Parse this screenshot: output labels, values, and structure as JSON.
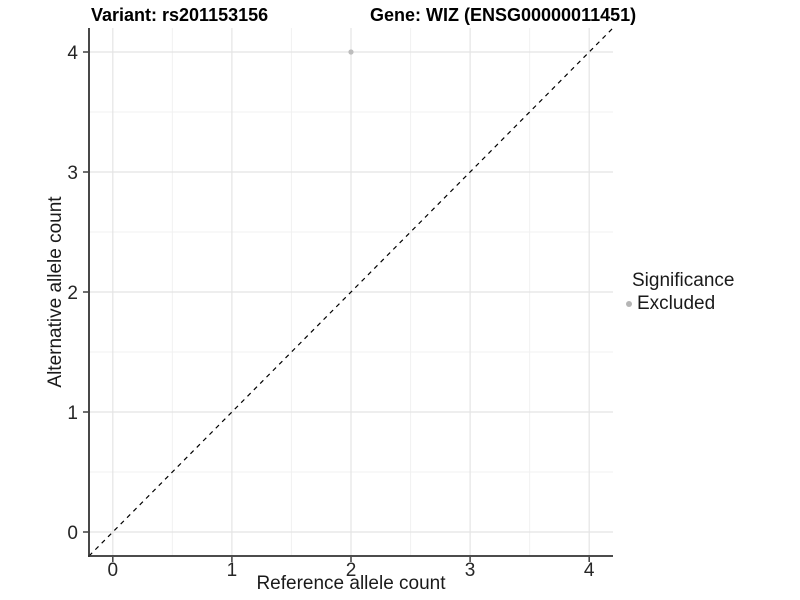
{
  "chart_data": {
    "type": "scatter",
    "title_left": "Variant: rs201153156",
    "title_right": "Gene: WIZ (ENSG00000011451)",
    "xlabel": "Reference allele count",
    "ylabel": "Alternative allele count",
    "xlim": [
      -0.2,
      4.2
    ],
    "ylim": [
      -0.2,
      4.2
    ],
    "xticks": [
      0,
      1,
      2,
      3,
      4
    ],
    "yticks": [
      0,
      1,
      2,
      3,
      4
    ],
    "minor_xticks": [
      0.5,
      1.5,
      2.5,
      3.5
    ],
    "minor_yticks": [
      0.5,
      1.5,
      2.5,
      3.5
    ],
    "grid": "major+minor",
    "series": [
      {
        "name": "Excluded",
        "color": "#bdbdbd",
        "points": [
          {
            "x": 2,
            "y": 4
          }
        ]
      }
    ],
    "reference_line": {
      "kind": "y=x",
      "linetype": "dashed",
      "color": "#000000"
    },
    "legend": {
      "title": "Significance",
      "position": "right",
      "entries": [
        {
          "label": "Excluded",
          "color": "#b5b5b5"
        }
      ]
    },
    "colors": {
      "background": "#ffffff",
      "grid_major": "#e4e4e4",
      "grid_minor": "#f1f1f1",
      "axis_line": "#333333",
      "tick_mark": "#333333",
      "tick_text": "#262626"
    }
  }
}
